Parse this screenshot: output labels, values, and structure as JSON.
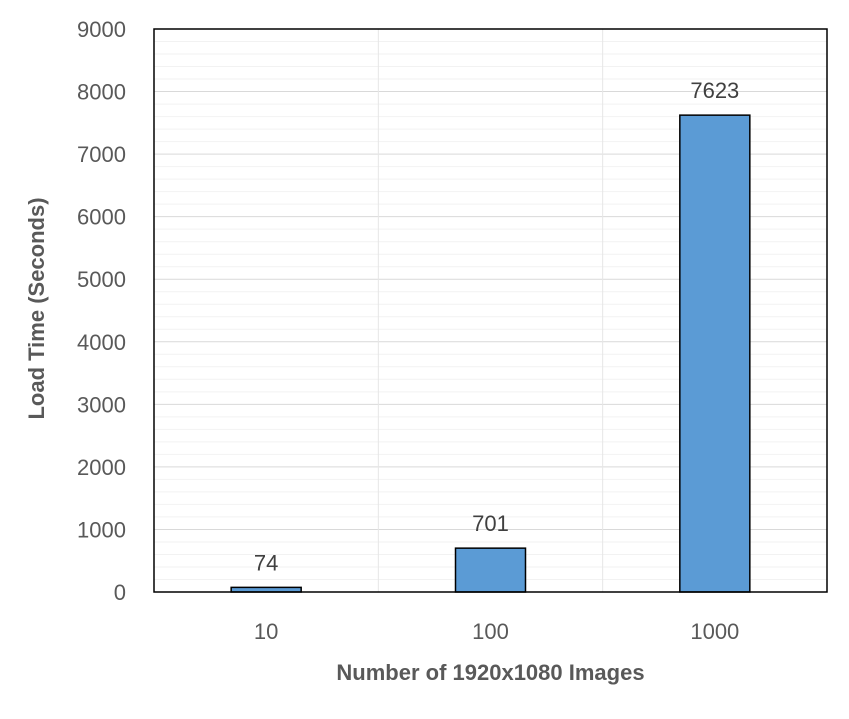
{
  "chart_data": {
    "type": "bar",
    "title": "",
    "xlabel": "Number of 1920x1080 Images",
    "ylabel": "Load Time (Seconds)",
    "categories": [
      "10",
      "100",
      "1000"
    ],
    "values": [
      74,
      701,
      7623
    ],
    "data_labels": [
      "74",
      "701",
      "7623"
    ],
    "ylim": [
      0,
      9000
    ],
    "yticks": [
      "0",
      "1000",
      "2000",
      "3000",
      "4000",
      "5000",
      "6000",
      "7000",
      "8000",
      "9000"
    ],
    "grid": "on",
    "legend": "none",
    "bar_color": "#5b9bd5",
    "bar_edge_color": "#000000",
    "axis_color": "#404040",
    "text_color": "#595959"
  }
}
